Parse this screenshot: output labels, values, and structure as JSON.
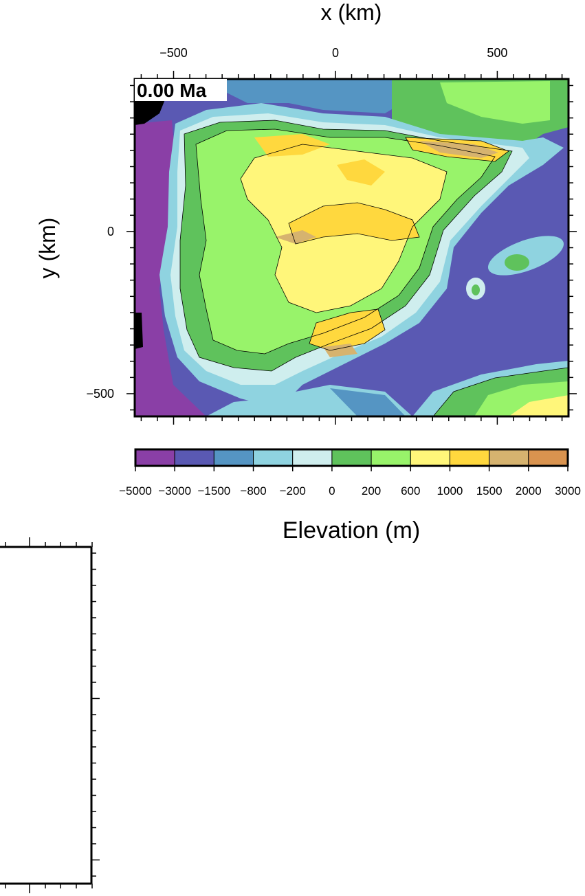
{
  "map": {
    "x_label": "x (km)",
    "y_label": "y (km)",
    "time_label": "0.00 Ma",
    "x_ticks": [
      {
        "value": -500,
        "label": "−500"
      },
      {
        "value": 0,
        "label": "0"
      },
      {
        "value": 500,
        "label": "500"
      }
    ],
    "y_ticks": [
      {
        "value": 0,
        "label": "0"
      },
      {
        "value": -500,
        "label": "−500"
      }
    ],
    "x_range": [
      -620,
      720
    ],
    "y_range": [
      -570,
      470
    ]
  },
  "colorbar": {
    "title": "Elevation (m)",
    "tick_labels": [
      "−5000",
      "−3000",
      "−1500",
      "−800",
      "−200",
      "0",
      "200",
      "600",
      "1000",
      "1500",
      "2000",
      "3000"
    ],
    "colors": [
      "#8a3fa6",
      "#5a59b3",
      "#5595c3",
      "#8fd3e0",
      "#cfeeee",
      "#5fc25c",
      "#98f36a",
      "#fff67a",
      "#ffd83e",
      "#d6b36f",
      "#d9934f"
    ]
  }
}
